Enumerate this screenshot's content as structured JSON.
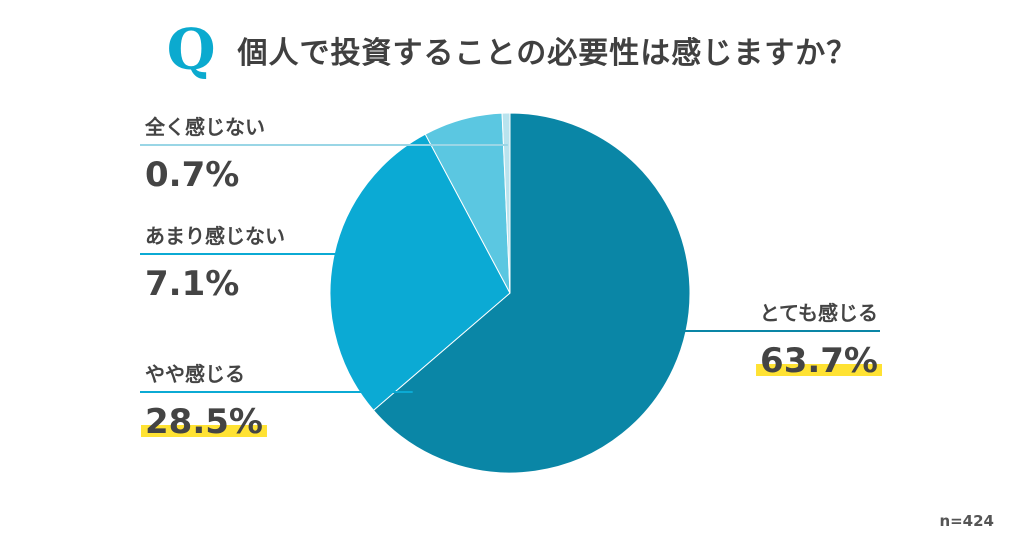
{
  "question_mark": "Q",
  "accent_color": "#0BAACF",
  "highlight_color": "#FFE233",
  "title": "個人で投資することの必要性は感じますか？",
  "sample_size": "n=424",
  "chart_data": {
    "type": "pie",
    "title": "個人で投資することの必要性は感じますか？",
    "start": "12 o'clock",
    "direction": "clockwise",
    "slices": [
      {
        "label": "とても感じる",
        "value": 63.7,
        "display": "63.7%",
        "color": "#0A86A6",
        "highlighted": true
      },
      {
        "label": "やや感じる",
        "value": 28.5,
        "display": "28.5%",
        "color": "#0BAAD4",
        "highlighted": true
      },
      {
        "label": "あまり感じない",
        "value": 7.1,
        "display": "7.1%",
        "color": "#5BC7E1",
        "highlighted": false
      },
      {
        "label": "全く感じない",
        "value": 0.7,
        "display": "0.7%",
        "color": "#B9E3EE",
        "highlighted": false
      }
    ]
  }
}
